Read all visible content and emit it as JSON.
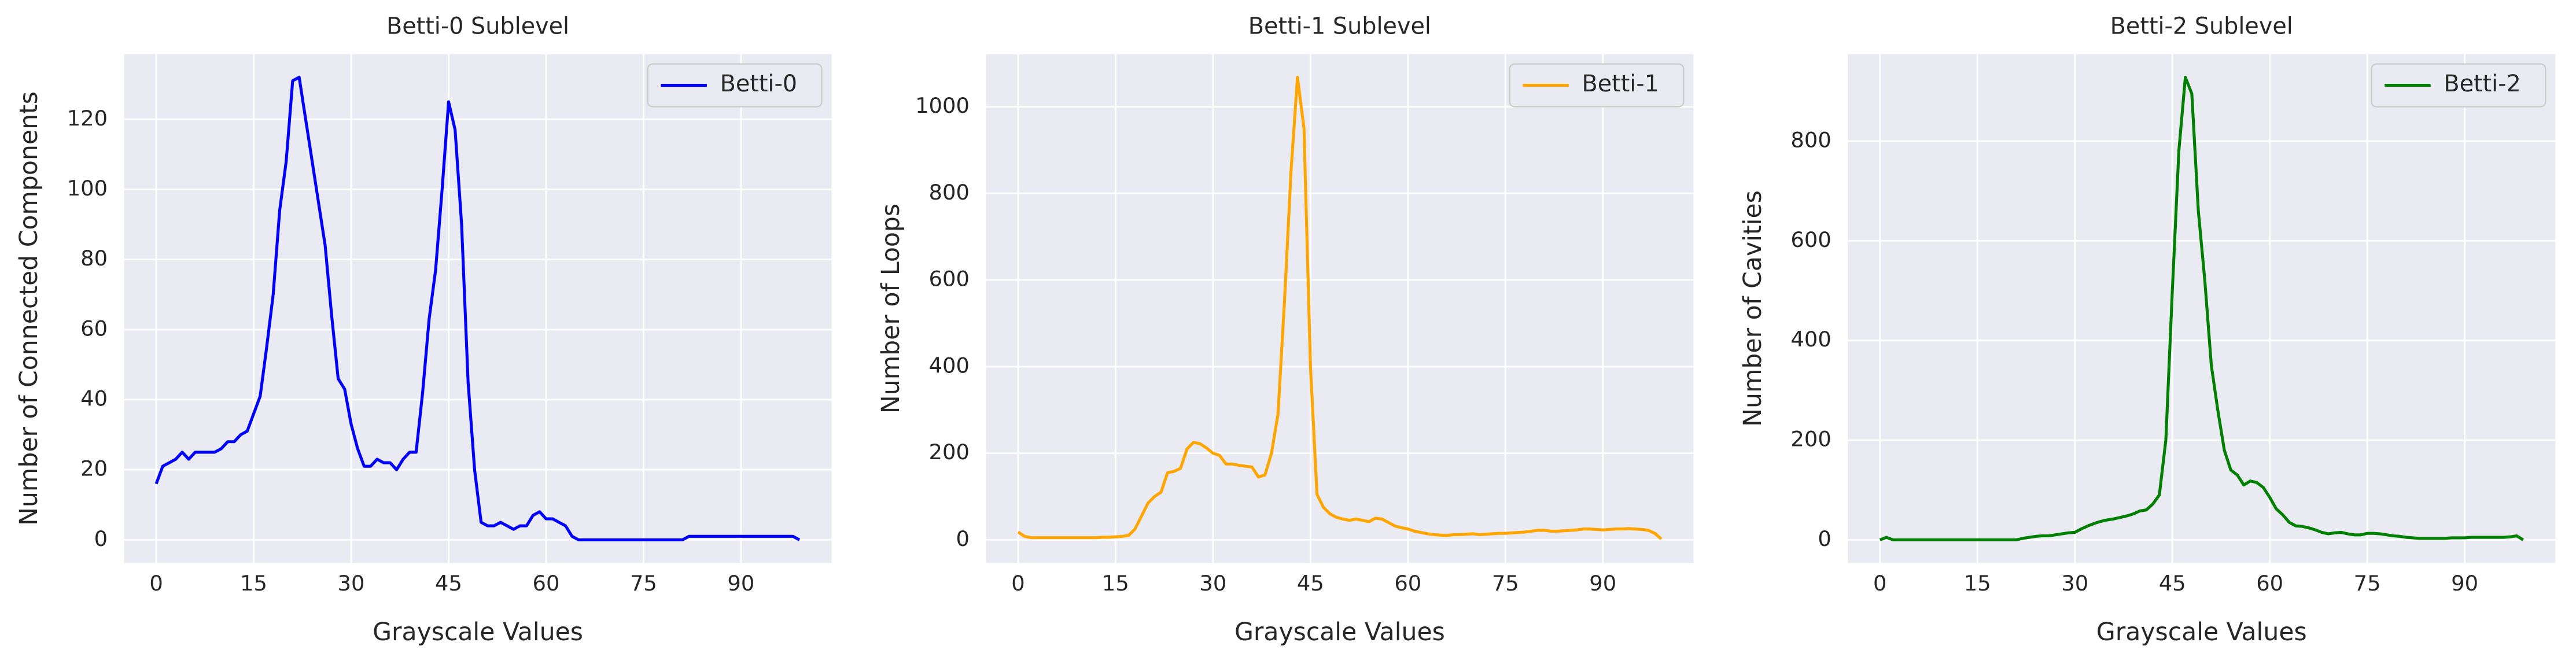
{
  "chart_data": [
    {
      "type": "line",
      "title": "Betti-0 Sublevel",
      "x_label": "Grayscale Values",
      "y_label": "Number of Connected Components",
      "x": [
        0,
        1,
        2,
        3,
        4,
        5,
        6,
        7,
        8,
        9,
        10,
        11,
        12,
        13,
        14,
        15,
        16,
        17,
        18,
        19,
        20,
        21,
        22,
        23,
        24,
        25,
        26,
        27,
        28,
        29,
        30,
        31,
        32,
        33,
        34,
        35,
        36,
        37,
        38,
        39,
        40,
        41,
        42,
        43,
        44,
        45,
        46,
        47,
        48,
        49,
        50,
        51,
        52,
        53,
        54,
        55,
        56,
        57,
        58,
        59,
        60,
        61,
        62,
        63,
        64,
        65,
        66,
        67,
        68,
        69,
        70,
        71,
        72,
        73,
        74,
        75,
        76,
        77,
        78,
        79,
        80,
        81,
        82,
        83,
        84,
        85,
        86,
        87,
        88,
        89,
        90,
        91,
        92,
        93,
        94,
        95,
        96,
        97,
        98,
        99
      ],
      "series": [
        {
          "name": "Betti-0",
          "color": "#0000ff",
          "values": [
            16,
            21,
            22,
            23,
            25,
            23,
            25,
            25,
            25,
            25,
            26,
            28,
            28,
            30,
            31,
            36,
            41,
            55,
            70,
            94,
            108,
            131,
            132,
            120,
            108,
            96,
            84,
            64,
            46,
            43,
            33,
            26,
            21,
            21,
            23,
            22,
            22,
            20,
            23,
            25,
            25,
            42,
            63,
            77,
            100,
            125,
            117,
            90,
            45,
            20,
            5,
            4,
            4,
            5,
            4,
            3,
            4,
            4,
            7,
            8,
            6,
            6,
            5,
            4,
            1,
            0,
            0,
            0,
            0,
            0,
            0,
            0,
            0,
            0,
            0,
            0,
            0,
            0,
            0,
            0,
            0,
            0,
            1,
            1,
            1,
            1,
            1,
            1,
            1,
            1,
            1,
            1,
            1,
            1,
            1,
            1,
            1,
            1,
            1,
            0
          ]
        }
      ],
      "xlim": [
        -4.95,
        103.95
      ],
      "xticks": [
        0,
        15,
        30,
        45,
        60,
        75,
        90
      ],
      "ylim": [
        -6.6,
        138.6
      ],
      "yticks": [
        0,
        20,
        40,
        60,
        80,
        100,
        120
      ],
      "grid": true,
      "legend": "upper right"
    },
    {
      "type": "line",
      "title": "Betti-1 Sublevel",
      "x_label": "Grayscale Values",
      "y_label": "Number of Loops",
      "x": [
        0,
        1,
        2,
        3,
        4,
        5,
        6,
        7,
        8,
        9,
        10,
        11,
        12,
        13,
        14,
        15,
        16,
        17,
        18,
        19,
        20,
        21,
        22,
        23,
        24,
        25,
        26,
        27,
        28,
        29,
        30,
        31,
        32,
        33,
        34,
        35,
        36,
        37,
        38,
        39,
        40,
        41,
        42,
        43,
        44,
        45,
        46,
        47,
        48,
        49,
        50,
        51,
        52,
        53,
        54,
        55,
        56,
        57,
        58,
        59,
        60,
        61,
        62,
        63,
        64,
        65,
        66,
        67,
        68,
        69,
        70,
        71,
        72,
        73,
        74,
        75,
        76,
        77,
        78,
        79,
        80,
        81,
        82,
        83,
        84,
        85,
        86,
        87,
        88,
        89,
        90,
        91,
        92,
        93,
        94,
        95,
        96,
        97,
        98,
        99
      ],
      "series": [
        {
          "name": "Betti-1",
          "color": "#ffa500",
          "values": [
            18,
            8,
            5,
            5,
            5,
            5,
            5,
            5,
            5,
            5,
            5,
            5,
            5,
            6,
            6,
            7,
            8,
            10,
            25,
            55,
            85,
            100,
            110,
            155,
            158,
            165,
            210,
            225,
            222,
            212,
            200,
            195,
            175,
            175,
            172,
            170,
            168,
            145,
            150,
            200,
            290,
            550,
            850,
            1068,
            950,
            400,
            105,
            75,
            60,
            52,
            48,
            45,
            48,
            45,
            42,
            50,
            48,
            40,
            32,
            28,
            25,
            20,
            17,
            14,
            12,
            11,
            10,
            12,
            12,
            13,
            14,
            12,
            13,
            14,
            15,
            15,
            16,
            17,
            18,
            20,
            22,
            22,
            20,
            20,
            21,
            22,
            23,
            25,
            25,
            24,
            23,
            24,
            25,
            25,
            26,
            25,
            24,
            22,
            15,
            2
          ]
        }
      ],
      "xlim": [
        -4.95,
        103.95
      ],
      "xticks": [
        0,
        15,
        30,
        45,
        60,
        75,
        90
      ],
      "ylim": [
        -53.4,
        1121.4
      ],
      "yticks": [
        0,
        200,
        400,
        600,
        800,
        1000
      ],
      "grid": true,
      "legend": "upper right"
    },
    {
      "type": "line",
      "title": "Betti-2 Sublevel",
      "x_label": "Grayscale Values",
      "y_label": "Number of Cavities",
      "x": [
        0,
        1,
        2,
        3,
        4,
        5,
        6,
        7,
        8,
        9,
        10,
        11,
        12,
        13,
        14,
        15,
        16,
        17,
        18,
        19,
        20,
        21,
        22,
        23,
        24,
        25,
        26,
        27,
        28,
        29,
        30,
        31,
        32,
        33,
        34,
        35,
        36,
        37,
        38,
        39,
        40,
        41,
        42,
        43,
        44,
        45,
        46,
        47,
        48,
        49,
        50,
        51,
        52,
        53,
        54,
        55,
        56,
        57,
        58,
        59,
        60,
        61,
        62,
        63,
        64,
        65,
        66,
        67,
        68,
        69,
        70,
        71,
        72,
        73,
        74,
        75,
        76,
        77,
        78,
        79,
        80,
        81,
        82,
        83,
        84,
        85,
        86,
        87,
        88,
        89,
        90,
        91,
        92,
        93,
        94,
        95,
        96,
        97,
        98,
        99
      ],
      "series": [
        {
          "name": "Betti-2",
          "color": "#008000",
          "values": [
            0,
            5,
            0,
            0,
            0,
            0,
            0,
            0,
            0,
            0,
            0,
            0,
            0,
            0,
            0,
            0,
            0,
            0,
            0,
            0,
            0,
            0,
            3,
            5,
            7,
            8,
            8,
            10,
            12,
            14,
            15,
            22,
            28,
            33,
            37,
            40,
            42,
            45,
            48,
            52,
            58,
            60,
            72,
            90,
            200,
            500,
            780,
            928,
            895,
            660,
            520,
            350,
            260,
            180,
            140,
            130,
            110,
            118,
            115,
            105,
            85,
            62,
            50,
            35,
            28,
            27,
            24,
            20,
            15,
            12,
            14,
            15,
            12,
            10,
            10,
            13,
            13,
            12,
            10,
            8,
            7,
            5,
            4,
            3,
            3,
            3,
            3,
            3,
            4,
            4,
            4,
            5,
            5,
            5,
            5,
            5,
            5,
            6,
            8,
            0
          ]
        }
      ],
      "xlim": [
        -4.95,
        103.95
      ],
      "xticks": [
        0,
        15,
        30,
        45,
        60,
        75,
        90
      ],
      "ylim": [
        -46.4,
        974.4
      ],
      "yticks": [
        0,
        200,
        400,
        600,
        800
      ],
      "grid": true,
      "legend": "upper right"
    }
  ]
}
